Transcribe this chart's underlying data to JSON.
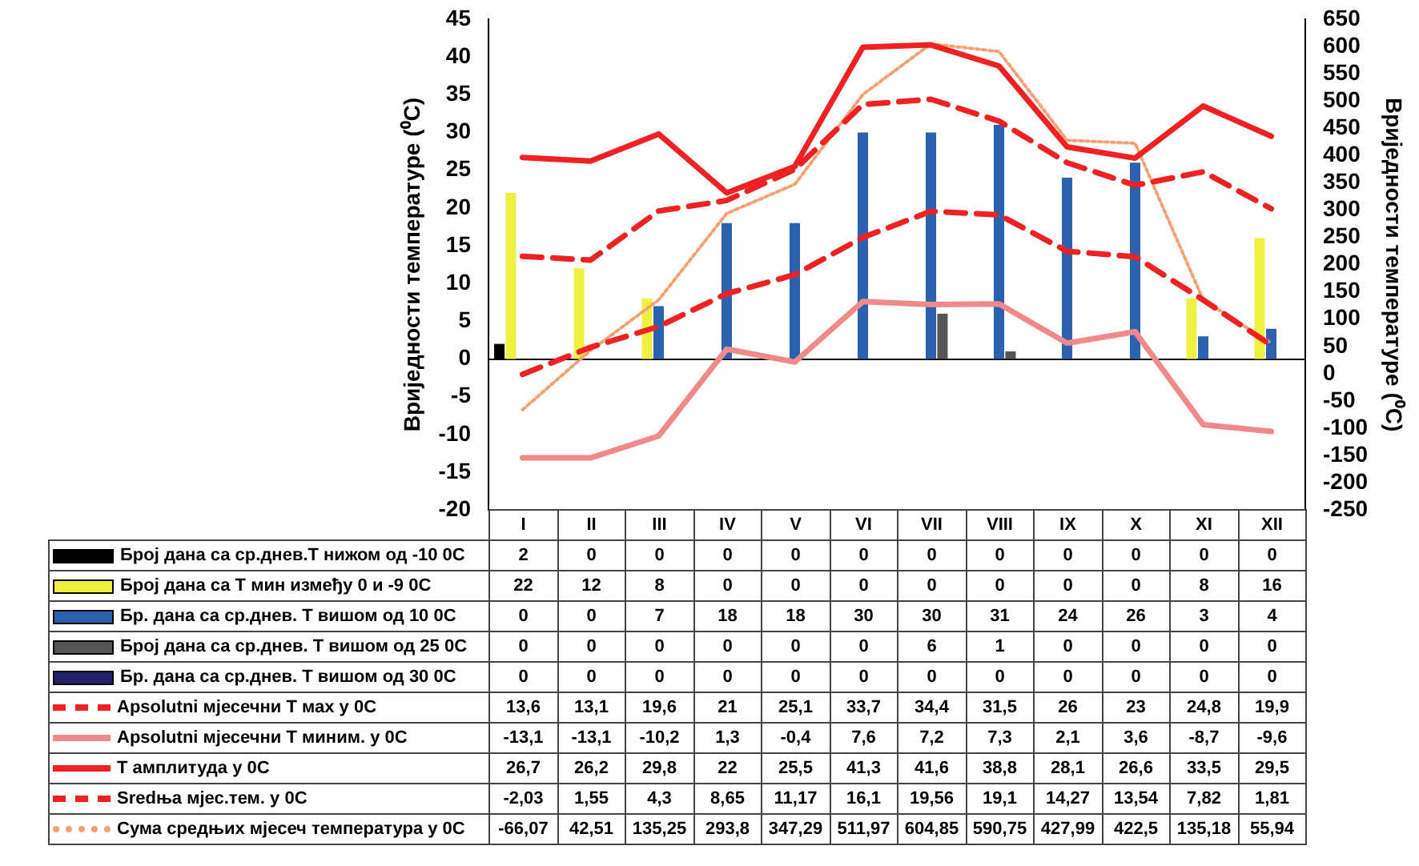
{
  "chart_data": {
    "type": "bar",
    "categories": [
      "I",
      "II",
      "III",
      "IV",
      "V",
      "VI",
      "VII",
      "VIII",
      "IX",
      "X",
      "XI",
      "XII"
    ],
    "ylabel": "Вриједности температуре (⁰C)",
    "y2label": "Вриједности температуре (⁰C)",
    "ylim": [
      -20,
      45
    ],
    "yticks": [
      -20,
      -15,
      -10,
      -5,
      0,
      5,
      10,
      15,
      20,
      25,
      30,
      35,
      40,
      45
    ],
    "y2lim": [
      -250,
      650
    ],
    "y2ticks": [
      -250,
      -200,
      -150,
      -100,
      -50,
      0,
      50,
      100,
      150,
      200,
      250,
      300,
      350,
      400,
      450,
      500,
      550,
      600,
      650
    ],
    "legend": "bottom",
    "series": [
      {
        "name": "Број дана са ср.днев.Т нижом од -10 0С",
        "color": "#000000",
        "values": [
          2,
          0,
          0,
          0,
          0,
          0,
          0,
          0,
          0,
          0,
          0,
          0
        ],
        "value_labels": [
          "2",
          "0",
          "0",
          "0",
          "0",
          "0",
          "0",
          "0",
          "0",
          "0",
          "0",
          "0"
        ]
      },
      {
        "name": "Број дана са Т мин између 0 и -9 0С",
        "color": "#f0f040",
        "values": [
          22,
          12,
          8,
          0,
          0,
          0,
          0,
          0,
          0,
          0,
          8,
          16
        ],
        "value_labels": [
          "22",
          "12",
          "8",
          "0",
          "0",
          "0",
          "0",
          "0",
          "0",
          "0",
          "8",
          "16"
        ]
      },
      {
        "name": "Бр. дана са ср.днев. Т вишом од 10 0С",
        "color": "#2a62b0",
        "values": [
          0,
          0,
          7,
          18,
          18,
          30,
          30,
          31,
          24,
          26,
          3,
          4
        ],
        "value_labels": [
          "0",
          "0",
          "7",
          "18",
          "18",
          "30",
          "30",
          "31",
          "24",
          "26",
          "3",
          "4"
        ]
      },
      {
        "name": "Број дана са ср.днев. Т вишом од 25 0С",
        "color": "#555555",
        "values": [
          0,
          0,
          0,
          0,
          0,
          0,
          6,
          1,
          0,
          0,
          0,
          0
        ],
        "value_labels": [
          "0",
          "0",
          "0",
          "0",
          "0",
          "0",
          "6",
          "1",
          "0",
          "0",
          "0",
          "0"
        ]
      },
      {
        "name": "Бр. дана са ср.днев. Т вишом од 30 0С",
        "color": "#22226a",
        "values": [
          0,
          0,
          0,
          0,
          0,
          0,
          0,
          0,
          0,
          0,
          0,
          0
        ],
        "value_labels": [
          "0",
          "0",
          "0",
          "0",
          "0",
          "0",
          "0",
          "0",
          "0",
          "0",
          "0",
          "0"
        ]
      },
      {
        "name": "Apsolutni мјесечни Т мах у 0С",
        "type": "line",
        "line_style": "dashed",
        "color": "#ee2222",
        "values": [
          13.6,
          13.1,
          19.6,
          21,
          25.1,
          33.7,
          34.4,
          31.5,
          26,
          23,
          24.8,
          19.9
        ],
        "value_labels": [
          "13,6",
          "13,1",
          "19,6",
          "21",
          "25,1",
          "33,7",
          "34,4",
          "31,5",
          "26",
          "23",
          "24,8",
          "19,9"
        ]
      },
      {
        "name": "Apsolutni мјесечни Т миним. у 0С",
        "type": "line",
        "line_style": "solid",
        "color": "#f08a8a",
        "values": [
          -13.1,
          -13.1,
          -10.2,
          1.3,
          -0.4,
          7.6,
          7.2,
          7.3,
          2.1,
          3.6,
          -8.7,
          -9.6
        ],
        "value_labels": [
          "-13,1",
          "-13,1",
          "-10,2",
          "1,3",
          "-0,4",
          "7,6",
          "7,2",
          "7,3",
          "2,1",
          "3,6",
          "-8,7",
          "-9,6"
        ]
      },
      {
        "name": "Т амплитуда у 0С",
        "type": "line",
        "line_style": "solid",
        "color": "#ee2222",
        "values": [
          26.7,
          26.2,
          29.8,
          22,
          25.5,
          41.3,
          41.6,
          38.8,
          28.1,
          26.6,
          33.5,
          29.5
        ],
        "value_labels": [
          "26,7",
          "26,2",
          "29,8",
          "22",
          "25,5",
          "41,3",
          "41,6",
          "38,8",
          "28,1",
          "26,6",
          "33,5",
          "29,5"
        ]
      },
      {
        "name": "Sredња мјес.тем. у 0С",
        "type": "line",
        "line_style": "dashed",
        "color": "#ee2222",
        "values": [
          -2.03,
          1.55,
          4.3,
          8.65,
          11.17,
          16.1,
          19.56,
          19.1,
          14.27,
          13.54,
          7.82,
          1.81
        ],
        "value_labels": [
          "-2,03",
          "1,55",
          "4,3",
          "8,65",
          "11,17",
          "16,1",
          "19,56",
          "19,1",
          "14,27",
          "13,54",
          "7,82",
          "1,81"
        ]
      },
      {
        "name": "Сума средњих мјесеч температура у 0С",
        "type": "line",
        "line_style": "dotted",
        "axis": "y2",
        "color": "#f4a070",
        "values": [
          -66.07,
          42.51,
          135.25,
          293.8,
          347.29,
          511.97,
          604.85,
          590.75,
          427.99,
          422.5,
          135.18,
          55.94
        ],
        "value_labels": [
          "-66,07",
          "42,51",
          "135,25",
          "293,8",
          "347,29",
          "511,97",
          "604,85",
          "590,75",
          "427,99",
          "422,5",
          "135,18",
          "55,94"
        ]
      }
    ]
  }
}
